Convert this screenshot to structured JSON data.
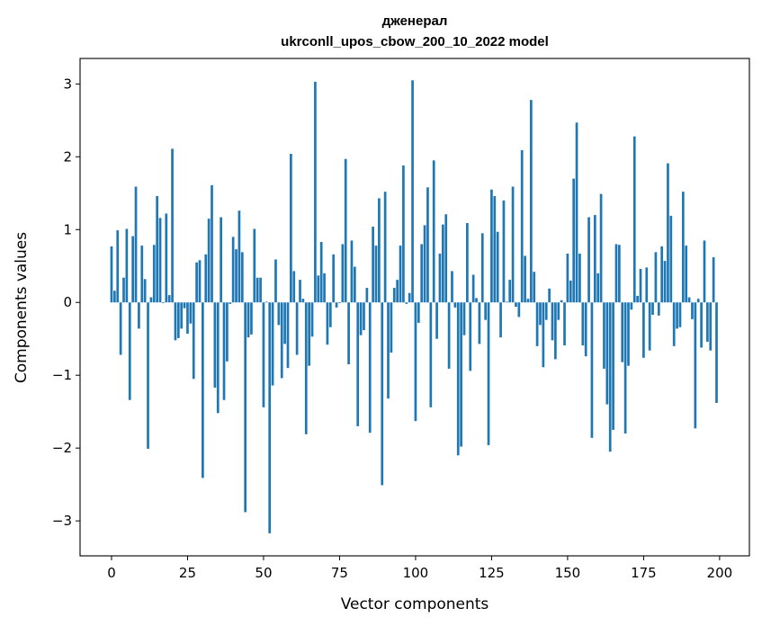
{
  "chart_data": {
    "type": "bar",
    "title_lines": [
      "дженерал",
      "ukrconll_upos_cbow_200_10_2022 model"
    ],
    "xlabel": "Vector components",
    "ylabel": "Components values",
    "xlim": [
      -10.35,
      209.8
    ],
    "ylim": [
      -3.48,
      3.35
    ],
    "xticks": [
      0,
      25,
      50,
      75,
      100,
      125,
      150,
      175,
      200
    ],
    "xtick_labels": [
      "0",
      "25",
      "50",
      "75",
      "100",
      "125",
      "150",
      "175",
      "200"
    ],
    "yticks": [
      -3,
      -2,
      -1,
      0,
      1,
      2,
      3
    ],
    "ytick_labels": [
      "−3",
      "−2",
      "−1",
      "0",
      "1",
      "2",
      "3"
    ],
    "grid": false,
    "bar_color": "#1f77b4",
    "bar_width": 0.8,
    "values": [
      0.77,
      0.16,
      0.99,
      -0.72,
      0.34,
      1.01,
      -1.34,
      0.91,
      1.59,
      -0.36,
      0.78,
      0.32,
      -2.01,
      0.07,
      0.79,
      1.46,
      1.16,
      -0.01,
      1.22,
      0.1,
      2.11,
      -0.52,
      -0.49,
      -0.36,
      -0.08,
      -0.43,
      -0.29,
      -1.05,
      0.55,
      0.58,
      -2.41,
      0.66,
      1.15,
      1.61,
      -1.17,
      -1.52,
      1.17,
      -1.34,
      -0.81,
      -0.02,
      0.9,
      0.73,
      1.26,
      0.69,
      -2.88,
      -0.48,
      -0.44,
      1.01,
      0.34,
      0.34,
      -1.44,
      0.01,
      -3.17,
      -1.14,
      0.59,
      -0.31,
      -1.04,
      -0.57,
      -0.9,
      2.04,
      0.43,
      -0.72,
      0.31,
      0.05,
      -1.81,
      -0.87,
      -0.47,
      3.03,
      0.37,
      0.83,
      0.4,
      -0.58,
      -0.34,
      0.66,
      -0.07,
      -0.01,
      0.8,
      1.97,
      -0.85,
      0.85,
      0.49,
      -1.7,
      -0.45,
      -0.38,
      0.2,
      -1.79,
      1.04,
      0.78,
      1.43,
      -2.51,
      1.52,
      -1.32,
      -0.69,
      0.2,
      0.31,
      0.78,
      1.88,
      -0.02,
      0.13,
      3.05,
      -1.63,
      -0.28,
      0.8,
      1.06,
      1.58,
      -1.44,
      1.95,
      -0.5,
      0.67,
      1.07,
      1.21,
      -0.91,
      0.43,
      -0.07,
      -2.1,
      -1.98,
      -0.45,
      1.09,
      -0.94,
      0.38,
      0.06,
      -0.57,
      0.95,
      -0.24,
      -1.96,
      1.55,
      1.46,
      0.97,
      -0.48,
      1.4,
      0.01,
      0.31,
      1.59,
      -0.06,
      -0.2,
      2.09,
      0.64,
      0.05,
      2.78,
      0.42,
      -0.6,
      -0.31,
      -0.89,
      -0.24,
      0.19,
      -0.52,
      -0.78,
      -0.24,
      0.03,
      -0.59,
      0.67,
      0.3,
      1.7,
      2.47,
      0.67,
      -0.59,
      -0.74,
      1.17,
      -1.86,
      1.2,
      0.4,
      1.49,
      -0.91,
      -1.4,
      -2.05,
      -1.75,
      0.8,
      0.79,
      -0.82,
      -1.8,
      -0.87,
      -0.1,
      2.28,
      0.09,
      0.46,
      -0.76,
      0.48,
      -0.66,
      -0.17,
      0.69,
      -0.18,
      0.77,
      0.57,
      1.91,
      1.19,
      -0.6,
      -0.36,
      -0.34,
      1.52,
      0.78,
      0.07,
      -0.23,
      -1.73,
      0.05,
      -0.62,
      0.85,
      -0.54,
      -0.66,
      0.62,
      -1.38
    ]
  }
}
